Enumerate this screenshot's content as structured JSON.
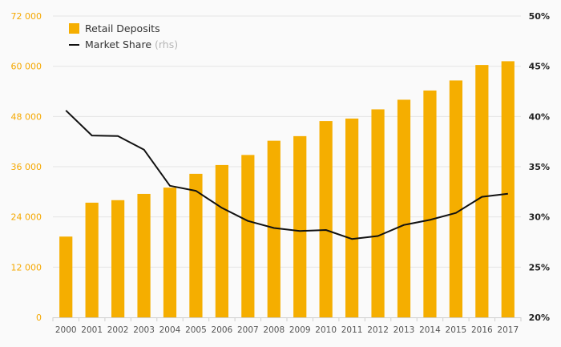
{
  "chart_data": {
    "type": "bar",
    "title": "",
    "xlabel": "",
    "ylabel": "",
    "categories": [
      "2000",
      "2001",
      "2002",
      "2003",
      "2004",
      "2005",
      "2006",
      "2007",
      "2008",
      "2009",
      "2010",
      "2011",
      "2012",
      "2013",
      "2014",
      "2015",
      "2016",
      "2017"
    ],
    "series": [
      {
        "name": "Retail Deposits",
        "type": "bar",
        "axis": "left",
        "color": "#f5ae00",
        "values": [
          19300,
          27400,
          28000,
          29500,
          31000,
          34300,
          36400,
          38800,
          42200,
          43300,
          46900,
          47500,
          49700,
          52000,
          54200,
          56600,
          60300,
          61200
        ]
      },
      {
        "name": "Market Share",
        "name_suffix": "(rhs)",
        "type": "line",
        "axis": "right",
        "color": "#111111",
        "values": [
          40.6,
          38.1,
          38.05,
          36.7,
          33.1,
          32.6,
          30.9,
          29.6,
          28.9,
          28.6,
          28.7,
          27.8,
          28.1,
          29.2,
          29.7,
          30.4,
          32.0,
          32.3
        ]
      }
    ],
    "y_left": {
      "ylim": [
        0,
        72000
      ],
      "ticks": [
        0,
        12000,
        24000,
        36000,
        48000,
        60000,
        72000
      ],
      "tick_labels": [
        "0",
        "12 000",
        "24 000",
        "36 000",
        "48 000",
        "60 000",
        "72 000"
      ],
      "color": "#f5a800"
    },
    "y_right": {
      "ylim": [
        20,
        50
      ],
      "ticks": [
        20,
        25,
        30,
        35,
        40,
        45,
        50
      ],
      "tick_labels": [
        "20%",
        "25%",
        "30%",
        "35%",
        "40%",
        "45%",
        "50%"
      ],
      "color": "#222222"
    },
    "grid": true,
    "legend": "top-left"
  }
}
